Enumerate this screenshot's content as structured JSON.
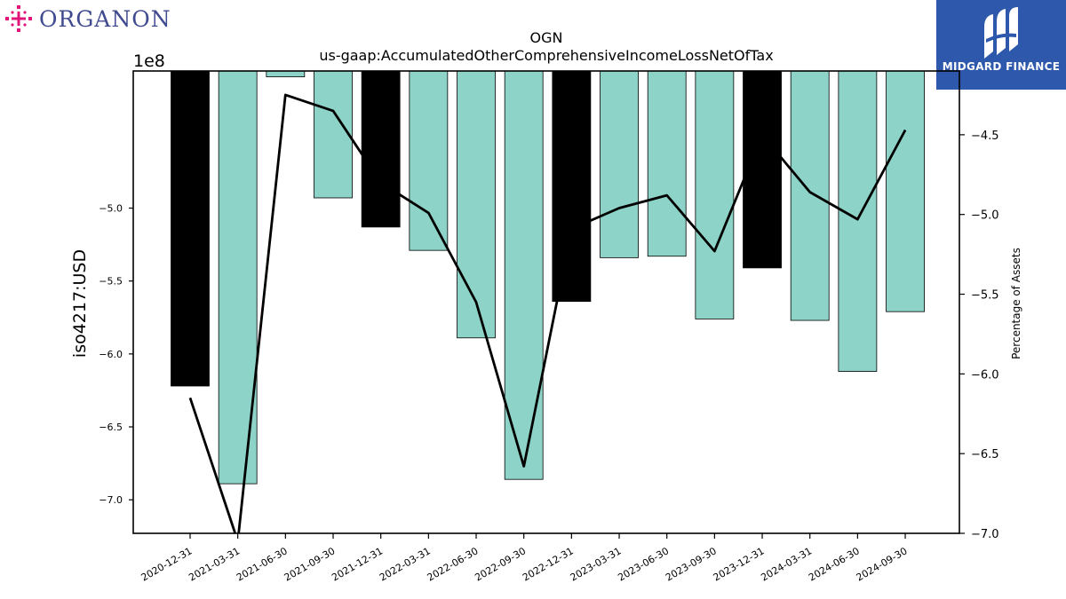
{
  "brand_left": {
    "text": "ORGANON",
    "accent": "#e0147b",
    "text_color": "#3f4a8f"
  },
  "brand_right": {
    "text": "MIDGARD FINANCE",
    "background": "#2d58ab"
  },
  "chart_data": {
    "type": "bar",
    "title": "OGN",
    "subtitle": "us-gaap:AccumulatedOtherComprehensiveIncomeLossNetOfTax",
    "ylabel": "iso4217:USD",
    "y2label": "Percentage of Assets",
    "y_offset_label": "1e8",
    "categories": [
      "2020-12-31",
      "2021-03-31",
      "2021-06-30",
      "2021-09-30",
      "2021-12-31",
      "2022-03-31",
      "2022-06-30",
      "2022-09-30",
      "2022-12-31",
      "2023-03-31",
      "2023-06-30",
      "2023-09-30",
      "2023-12-31",
      "2024-03-31",
      "2024-06-30",
      "2024-09-30"
    ],
    "bar_colors": [
      "#000000",
      "#8dd3c7",
      "#8dd3c7",
      "#8dd3c7",
      "#000000",
      "#8dd3c7",
      "#8dd3c7",
      "#8dd3c7",
      "#000000",
      "#8dd3c7",
      "#8dd3c7",
      "#8dd3c7",
      "#000000",
      "#8dd3c7",
      "#8dd3c7",
      "#8dd3c7"
    ],
    "series": [
      {
        "axis": "left",
        "type": "bar",
        "values": [
          -6.22,
          -6.89,
          -4.1,
          -4.93,
          -5.13,
          -5.29,
          -5.89,
          -6.86,
          -5.64,
          -5.34,
          -5.33,
          -5.76,
          -5.41,
          -5.77,
          -6.12,
          -5.71
        ]
      },
      {
        "axis": "right",
        "type": "line",
        "color": "#000000",
        "values": [
          -6.15,
          -7.05,
          -4.25,
          -4.35,
          -4.8,
          -4.99,
          -5.55,
          -6.58,
          -5.09,
          -4.96,
          -4.88,
          -5.23,
          -4.5,
          -4.86,
          -5.03,
          -4.47
        ]
      }
    ],
    "ylim": [
      -7.23,
      -4.06
    ],
    "y2lim": [
      -7.0,
      -4.1
    ],
    "yticks": [
      -5.0,
      -5.5,
      -6.0,
      -6.5,
      -7.0
    ],
    "y2ticks": [
      -4.5,
      -5.0,
      -5.5,
      -6.0,
      -6.5,
      -7.0
    ],
    "grid": false
  }
}
